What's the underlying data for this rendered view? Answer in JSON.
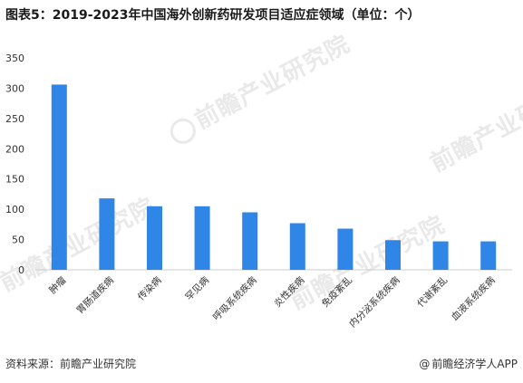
{
  "title": "图表5：2019-2023年中国海外创新药研发项目适应症领域（单位：个）",
  "source": "资料来源：前瞻产业研究院",
  "brand": "前瞻经济学人APP",
  "watermark": "前瞻产业研究院",
  "colors": {
    "bar": "#2f86e6",
    "axis": "#cccccc",
    "text": "#333333"
  },
  "chart_data": {
    "type": "bar",
    "title": "图表5：2019-2023年中国海外创新药研发项目适应症领域（单位：个）",
    "categories": [
      "肿瘤",
      "胃肠道疾病",
      "传染病",
      "罕见病",
      "呼吸系统疾病",
      "炎性疾病",
      "免疫紊乱",
      "内分泌系统疾病",
      "代谢紊乱",
      "血液系统疾病"
    ],
    "values": [
      306,
      118,
      105,
      105,
      95,
      77,
      68,
      49,
      47,
      47
    ],
    "ylim": [
      0,
      350
    ],
    "yticks": [
      0,
      50,
      100,
      150,
      200,
      250,
      300,
      350
    ],
    "xlabel": "",
    "ylabel": "",
    "grid": false,
    "legend": "none"
  }
}
